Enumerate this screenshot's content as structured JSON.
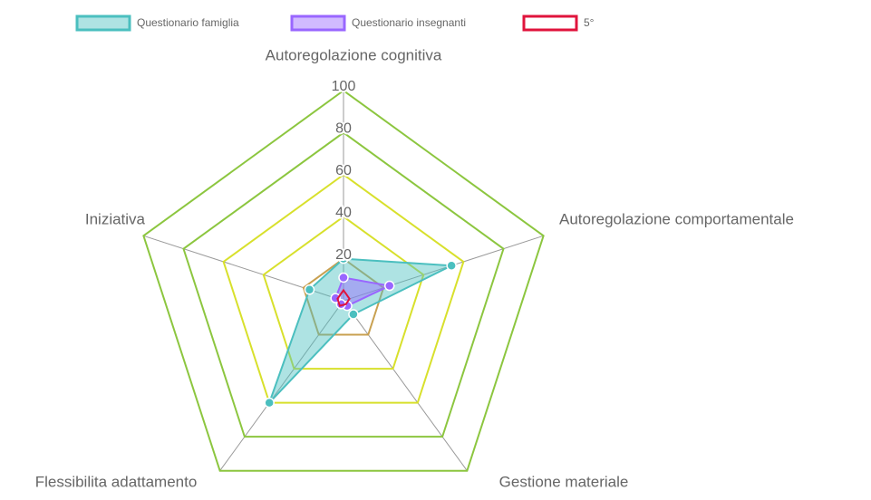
{
  "chart_data": {
    "type": "radar",
    "categories": [
      "Autoregolazione cognitiva",
      "Autoregolazione comportamentale",
      "Gestione materiale",
      "Flessibilita adattamento",
      "Iniziativa"
    ],
    "series": [
      {
        "name": "Questionario famiglia",
        "color": "#4bbfbf",
        "fill": "rgba(75,192,192,0.45)",
        "values": [
          20,
          54,
          8,
          60,
          17
        ]
      },
      {
        "name": "Questionario insegnanti",
        "color": "#9966ff",
        "fill": "rgba(153,102,255,0.45)",
        "values": [
          11,
          23,
          3,
          2,
          4
        ]
      },
      {
        "name": "5°",
        "color": "#e0143c",
        "fill": "none",
        "values": [
          5,
          3,
          2,
          3,
          3
        ]
      }
    ],
    "rlim": [
      0,
      100
    ],
    "rticks": [
      20,
      40,
      60,
      80,
      100
    ],
    "ring_colors": [
      "#c8a050",
      "#d8e02c",
      "#d8e02c",
      "#8cc63f",
      "#8cc63f"
    ]
  }
}
